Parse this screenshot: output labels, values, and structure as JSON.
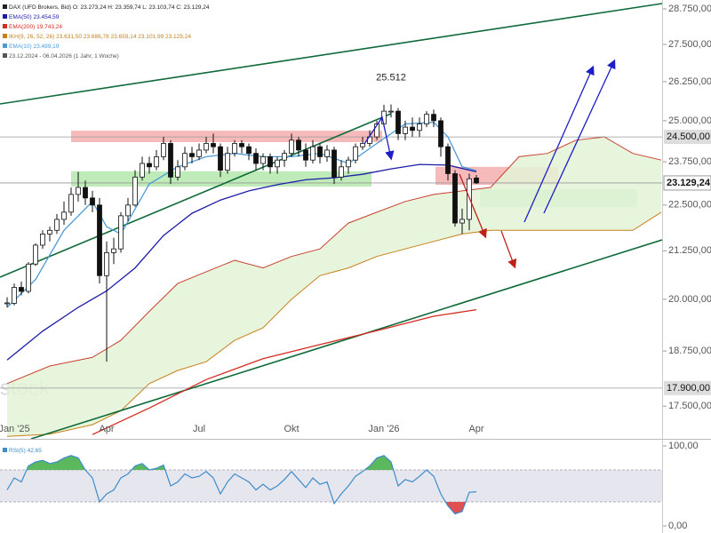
{
  "chart_data": [
    {
      "type": "candlestick",
      "title": "DAX (UFD Brokers, Bid)",
      "ohlc_label": "O: 23.273,24  H: 23.359,74  L: 23.103,74  C: 23.129,24",
      "subtitle": "23.12.2024 - 06.04.2026 (1 Jahr, 1 Woche)",
      "watermark": "stock",
      "log_scale": true,
      "ylim": [
        16800,
        29070
      ],
      "yticks": [
        {
          "value": 28750,
          "label": "28.750,00"
        },
        {
          "value": 27500,
          "label": "27.500,00"
        },
        {
          "value": 26250,
          "label": "26.250,00"
        },
        {
          "value": 25000,
          "label": "25.000,00"
        },
        {
          "value": 23750,
          "label": "23.750,00"
        },
        {
          "value": 22500,
          "label": "22.500,00"
        },
        {
          "value": 21250,
          "label": "21.250,00"
        },
        {
          "value": 20000,
          "label": "20.000,00"
        },
        {
          "value": 18750,
          "label": "18.750,00"
        },
        {
          "value": 17500,
          "label": "17.500,00"
        }
      ],
      "xlim": [
        -1,
        92.125
      ],
      "xticks": [
        {
          "value": 1,
          "label": "Jan '25"
        },
        {
          "value": 14,
          "label": "Apr"
        },
        {
          "value": 27,
          "label": "Jul"
        },
        {
          "value": 40,
          "label": "Okt"
        },
        {
          "value": 53,
          "label": "Jan '26"
        },
        {
          "value": 66,
          "label": "Apr"
        }
      ],
      "color_up": "#ffffff",
      "color_down": "#111111",
      "x": [
        0,
        1,
        2,
        3,
        4,
        5,
        6,
        7,
        8,
        9,
        10,
        11,
        12,
        13,
        14,
        15,
        16,
        17,
        18,
        19,
        20,
        21,
        22,
        23,
        24,
        25,
        26,
        27,
        28,
        29,
        30,
        31,
        32,
        33,
        34,
        35,
        36,
        37,
        38,
        39,
        40,
        41,
        42,
        43,
        44,
        45,
        46,
        47,
        48,
        49,
        50,
        51,
        52,
        53,
        54,
        55,
        56,
        57,
        58,
        59,
        60,
        61,
        62,
        63,
        64,
        65,
        66
      ],
      "open": [
        19900,
        19900,
        20300,
        20200,
        20900,
        21400,
        21700,
        21800,
        22100,
        22300,
        22800,
        23000,
        22700,
        22500,
        20600,
        21200,
        21300,
        22200,
        22500,
        23300,
        23700,
        23600,
        23900,
        24300,
        23300,
        23600,
        24000,
        23900,
        24100,
        24300,
        24200,
        23500,
        24000,
        24300,
        24200,
        24000,
        23700,
        23900,
        23600,
        23800,
        24000,
        24400,
        24100,
        23800,
        24200,
        23900,
        24100,
        23300,
        23600,
        23800,
        24200,
        24300,
        24500,
        24900,
        25300,
        25300,
        24600,
        24800,
        24700,
        24900,
        25200,
        25000,
        24200,
        23400,
        22000,
        22100,
        23273.24
      ],
      "high": [
        20050,
        20400,
        20450,
        20950,
        21450,
        21800,
        21900,
        22250,
        22600,
        23000,
        23450,
        23200,
        22900,
        22700,
        21500,
        21600,
        22300,
        22700,
        23500,
        23900,
        23900,
        24100,
        24500,
        24400,
        23800,
        24200,
        24200,
        24300,
        24500,
        24600,
        24300,
        24200,
        24400,
        24400,
        24300,
        24150,
        24000,
        24000,
        23900,
        24100,
        24600,
        24500,
        24300,
        24400,
        24300,
        24250,
        24200,
        23800,
        23900,
        24300,
        24500,
        24700,
        25000,
        25500,
        25512,
        25400,
        25000,
        25100,
        25100,
        25300,
        25350,
        25100,
        24300,
        23500,
        22400,
        23400,
        23359.74
      ],
      "low": [
        19800,
        19850,
        20100,
        20150,
        20850,
        21300,
        21500,
        21700,
        21950,
        22200,
        22600,
        22500,
        22300,
        20400,
        18500,
        20900,
        21200,
        22050,
        22450,
        23200,
        23400,
        23500,
        23800,
        23100,
        23200,
        23500,
        23700,
        23800,
        24000,
        24000,
        23300,
        23400,
        23900,
        24000,
        23800,
        23500,
        23500,
        23400,
        23400,
        23600,
        23900,
        23900,
        23600,
        23700,
        23700,
        23750,
        23100,
        23200,
        23400,
        23700,
        24100,
        24200,
        24400,
        24800,
        25100,
        24400,
        24400,
        24500,
        24500,
        24800,
        24800,
        23900,
        23200,
        21900,
        21700,
        21800,
        23103.74
      ],
      "close": [
        19910,
        20300,
        20200,
        20900,
        21400,
        21700,
        21800,
        22100,
        22300,
        22800,
        23000,
        22700,
        22500,
        20600,
        21200,
        21300,
        22200,
        22500,
        23300,
        23700,
        23600,
        23900,
        24300,
        23300,
        23600,
        24000,
        23900,
        24100,
        24300,
        24200,
        23500,
        24000,
        24300,
        24200,
        24000,
        23700,
        23900,
        23600,
        23800,
        24000,
        24400,
        24100,
        23800,
        24200,
        23900,
        24100,
        23300,
        23600,
        23800,
        24200,
        24300,
        24500,
        24900,
        25300,
        25300,
        24600,
        24800,
        24700,
        24900,
        25200,
        25000,
        24200,
        23400,
        22000,
        22100,
        23250,
        23129.24
      ],
      "overlays": [
        {
          "type": "line",
          "name": "EMA(50)",
          "legend_value": "23.454,59",
          "color": "#1c1ca8",
          "x": [
            0,
            5,
            10,
            14,
            18,
            22,
            26,
            30,
            34,
            38,
            42,
            46,
            50,
            54,
            58,
            62,
            66
          ],
          "values": [
            18540,
            19220,
            19800,
            20210,
            20800,
            21660,
            22270,
            22640,
            22900,
            23080,
            23220,
            23280,
            23380,
            23540,
            23670,
            23650,
            23454.59
          ]
        },
        {
          "type": "line",
          "name": "EMA(200)",
          "legend_value": "19.743,24",
          "color": "#d42a20",
          "x": [
            12,
            20,
            28,
            36,
            44,
            52,
            60,
            66
          ],
          "values": [
            16890,
            17460,
            18090,
            18570,
            18900,
            19230,
            19580,
            19743.24
          ]
        },
        {
          "type": "cloud",
          "name": "IKH(9, 26, 52, 26)",
          "legend_value": "23.631,50  23.686,78  23.659,14  23.101,99  23.129,24",
          "color": "#c8801a",
          "upper_color": "#c84030",
          "fill": "#e3f3d6",
          "x": [
            0,
            6,
            12,
            16,
            20,
            24,
            28,
            32,
            36,
            40,
            44,
            48,
            52,
            56,
            60,
            64,
            68,
            72,
            76,
            80,
            84,
            88,
            92
          ],
          "upper": [
            18000,
            18400,
            18600,
            19000,
            19700,
            20400,
            20700,
            21000,
            20800,
            21100,
            21300,
            22000,
            22300,
            22600,
            22800,
            22900,
            23000,
            23900,
            24000,
            24400,
            24500,
            24000,
            23800
          ],
          "lower": [
            16850,
            16900,
            17100,
            17400,
            18000,
            18300,
            18500,
            19000,
            19300,
            20000,
            20600,
            20800,
            21100,
            21300,
            21500,
            21700,
            21800,
            21800,
            21800,
            21800,
            21800,
            21800,
            22300
          ]
        },
        {
          "type": "line",
          "name": "EMA(10)",
          "legend_value": "23.489,19",
          "color": "#4a9ad8",
          "x": [
            0,
            4,
            8,
            12,
            14,
            16,
            20,
            24,
            28,
            32,
            36,
            40,
            44,
            48,
            52,
            56,
            60,
            62,
            64,
            66
          ],
          "values": [
            19800,
            20500,
            21800,
            22600,
            21900,
            21700,
            23100,
            23600,
            23900,
            24000,
            23900,
            23900,
            24000,
            23700,
            24300,
            24900,
            24950,
            24500,
            23600,
            23489.19
          ]
        }
      ],
      "zones": [
        {
          "color": "#f4a3a3",
          "ylim": [
            24339,
            24690
          ],
          "xlim": [
            9,
            52.75
          ]
        },
        {
          "color": "#a8e4a0",
          "ylim": [
            23024,
            23470
          ],
          "xlim": [
            9,
            51.25
          ]
        },
        {
          "color": "#f4a3a3",
          "ylim": [
            23075,
            23600
          ],
          "xlim": [
            60.25,
            77.5
          ]
        },
        {
          "color": "#a8e4a0",
          "ylim": [
            22440,
            22950
          ],
          "xlim": [
            66.5,
            88.6
          ]
        }
      ],
      "price_labels": [
        {
          "value": 24500,
          "label": "24.500,00",
          "style": "gray"
        },
        {
          "value": 23129.24,
          "label": "23.129,24",
          "style": "current"
        },
        {
          "value": 17900,
          "label": "17.900,00",
          "style": "gray"
        }
      ],
      "annotations": [
        {
          "text": "25.512",
          "x": 54,
          "value": 25512
        }
      ]
    },
    {
      "type": "line",
      "name": "RSI(5)",
      "legend_value": "42,65",
      "color": "#3c8ccc",
      "ylim": [
        0,
        100
      ],
      "yticks": [
        {
          "value": 100,
          "label": "100,00"
        },
        {
          "value": 0,
          "label": "0,00"
        }
      ],
      "bands": [
        30,
        70
      ],
      "band_color": "#e6e6ee",
      "above_color": "#5cb85c",
      "below_color": "#e05050",
      "xlim": [
        -1,
        92.125
      ],
      "x": [
        0,
        1,
        2,
        3,
        4,
        5,
        6,
        7,
        8,
        9,
        10,
        11,
        12,
        13,
        14,
        15,
        16,
        17,
        18,
        19,
        20,
        21,
        22,
        23,
        24,
        25,
        26,
        27,
        28,
        29,
        30,
        31,
        32,
        33,
        34,
        35,
        36,
        37,
        38,
        39,
        40,
        41,
        42,
        43,
        44,
        45,
        46,
        47,
        48,
        49,
        50,
        51,
        52,
        53,
        54,
        55,
        56,
        57,
        58,
        59,
        60,
        61,
        62,
        63,
        64,
        65,
        66
      ],
      "values": [
        45,
        60,
        55,
        75,
        80,
        82,
        78,
        80,
        85,
        88,
        85,
        70,
        60,
        30,
        40,
        45,
        60,
        65,
        75,
        78,
        70,
        72,
        76,
        50,
        55,
        65,
        60,
        62,
        68,
        60,
        40,
        55,
        65,
        60,
        55,
        45,
        52,
        45,
        50,
        58,
        68,
        58,
        48,
        60,
        52,
        55,
        28,
        40,
        50,
        62,
        68,
        75,
        85,
        88,
        80,
        50,
        58,
        55,
        62,
        70,
        62,
        40,
        25,
        15,
        18,
        42,
        42.65
      ]
    }
  ]
}
